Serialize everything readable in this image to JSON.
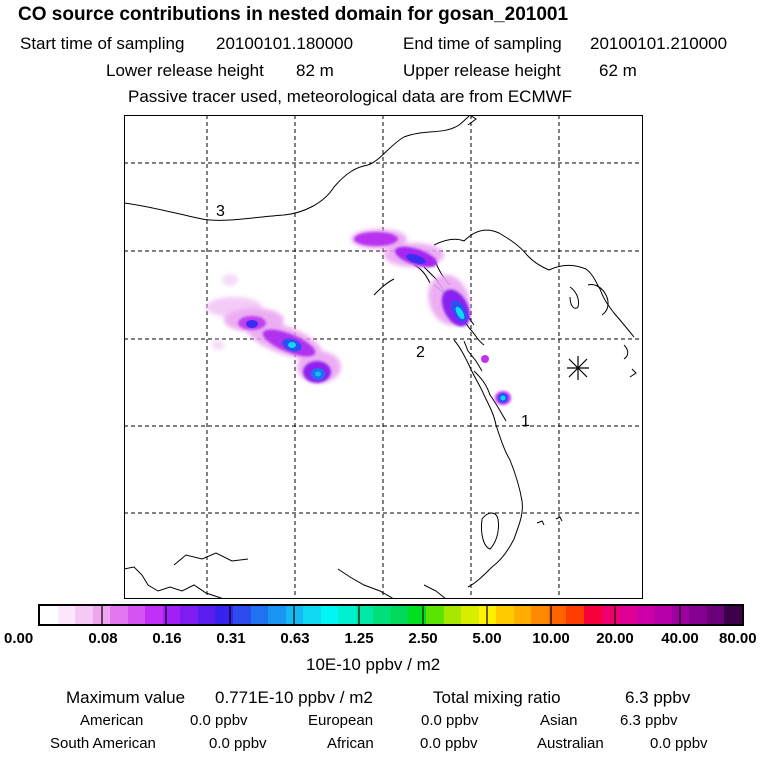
{
  "title": "CO  source contributions in nested domain for gosan_201001",
  "sampling": {
    "start_label": "Start time of sampling",
    "start_value": "20100101.180000",
    "end_label": "End time of sampling",
    "end_value": "20100101.210000"
  },
  "release": {
    "lower_label": "Lower release height",
    "lower_value": "82 m",
    "upper_label": "Upper release height",
    "upper_value": "62 m"
  },
  "note": "Passive tracer used, meteorological data are from ECMWF",
  "map": {
    "markers": [
      "1",
      "2",
      "3"
    ],
    "site_symbol": "*"
  },
  "colorbar": {
    "colors": [
      "#ffffff",
      "#fbe6fb",
      "#f5c8f5",
      "#eea6f0",
      "#e277f1",
      "#d654f3",
      "#c030f7",
      "#a020f5",
      "#7f1cf2",
      "#5a1df0",
      "#3822ee",
      "#2d4cf0",
      "#1f72f0",
      "#1a96f2",
      "#15b8f2",
      "#10d8f2",
      "#00f5f5",
      "#00f0d0",
      "#00e8a5",
      "#00e07a",
      "#00d85a",
      "#00e020",
      "#5ae400",
      "#a6e800",
      "#d8ee00",
      "#fff200",
      "#ffcc00",
      "#ffae00",
      "#ff8a00",
      "#ff6400",
      "#ff3c00",
      "#f8003c",
      "#f0006e",
      "#e00096",
      "#cc00a6",
      "#b800a8",
      "#9e00a0",
      "#860090",
      "#6a0078",
      "#3c0048"
    ],
    "ticks": [
      "0.00",
      "0.08",
      "0.16",
      "0.31",
      "0.63",
      "1.25",
      "2.50",
      "5.00",
      "10.00",
      "20.00",
      "40.00",
      "80.00"
    ],
    "unit": "10E-10 ppbv / m2"
  },
  "summary": {
    "max_label": "Maximum value",
    "max_value": "0.771E-10 ppbv / m2",
    "total_label": "Total mixing ratio",
    "total_value": "6.3 ppbv"
  },
  "regions": {
    "american_label": "American",
    "american_value": "0.0 ppbv",
    "european_label": "European",
    "european_value": "0.0 ppbv",
    "asian_label": "Asian",
    "asian_value": "6.3 ppbv",
    "south_american_label": "South American",
    "south_american_value": "0.0 ppbv",
    "african_label": "African",
    "african_value": "0.0 ppbv",
    "australian_label": "Australian",
    "australian_value": "0.0 ppbv"
  }
}
